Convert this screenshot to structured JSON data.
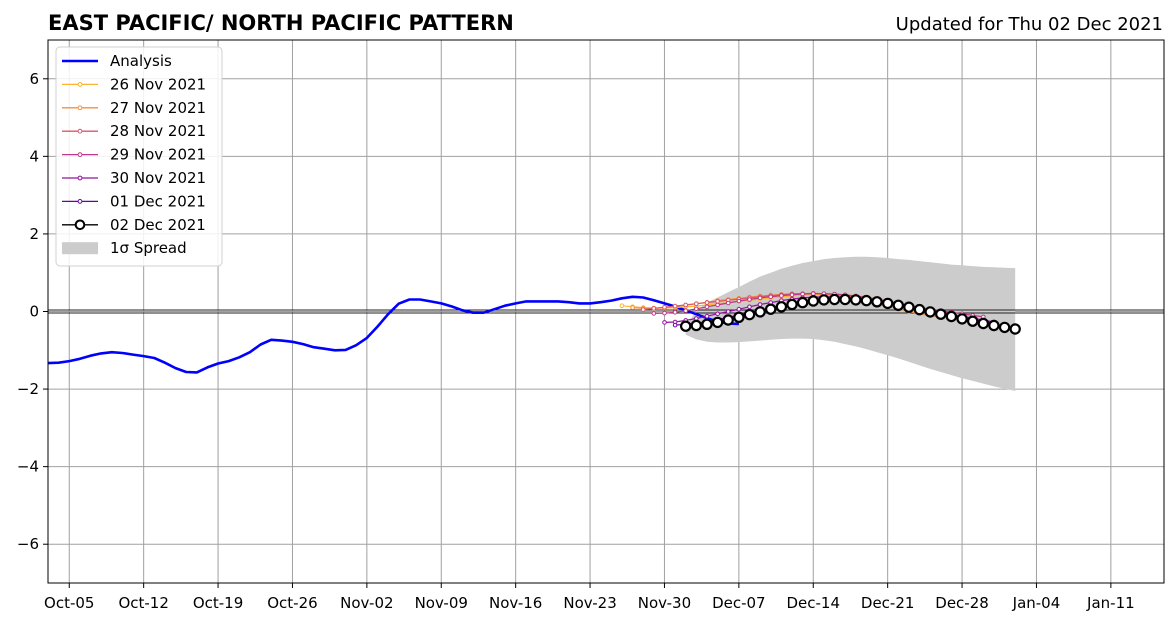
{
  "chart_data": {
    "type": "line",
    "title": "EAST PACIFIC/ NORTH PACIFIC PATTERN",
    "subtitle": "Updated for Thu 02 Dec 2021",
    "xlabel": "",
    "ylabel": "",
    "x_range": [
      "2021-10-03",
      "2022-01-16"
    ],
    "ylim": [
      -7,
      7
    ],
    "x_ticks": [
      {
        "date": "2021-10-05",
        "label": "Oct-05"
      },
      {
        "date": "2021-10-12",
        "label": "Oct-12"
      },
      {
        "date": "2021-10-19",
        "label": "Oct-19"
      },
      {
        "date": "2021-10-26",
        "label": "Oct-26"
      },
      {
        "date": "2021-11-02",
        "label": "Nov-02"
      },
      {
        "date": "2021-11-09",
        "label": "Nov-09"
      },
      {
        "date": "2021-11-16",
        "label": "Nov-16"
      },
      {
        "date": "2021-11-23",
        "label": "Nov-23"
      },
      {
        "date": "2021-11-30",
        "label": "Nov-30"
      },
      {
        "date": "2021-12-07",
        "label": "Dec-07"
      },
      {
        "date": "2021-12-14",
        "label": "Dec-14"
      },
      {
        "date": "2021-12-21",
        "label": "Dec-21"
      },
      {
        "date": "2021-12-28",
        "label": "Dec-28"
      },
      {
        "date": "2022-01-04",
        "label": "Jan-04"
      },
      {
        "date": "2022-01-11",
        "label": "Jan-11"
      }
    ],
    "y_ticks": [
      {
        "value": -6,
        "label": "−6"
      },
      {
        "value": -4,
        "label": "−4"
      },
      {
        "value": -2,
        "label": "−2"
      },
      {
        "value": 0,
        "label": "0"
      },
      {
        "value": 2,
        "label": "2"
      },
      {
        "value": 4,
        "label": "4"
      },
      {
        "value": 6,
        "label": "6"
      }
    ],
    "grid": true,
    "legend_position": "top-left",
    "zero_line": 0,
    "analysis": {
      "name": "Analysis",
      "color": "#0000ff",
      "start_date": "2021-10-03",
      "values": [
        -1.33,
        -1.32,
        -1.28,
        -1.22,
        -1.14,
        -1.08,
        -1.05,
        -1.07,
        -1.11,
        -1.15,
        -1.2,
        -1.32,
        -1.46,
        -1.56,
        -1.57,
        -1.44,
        -1.34,
        -1.28,
        -1.18,
        -1.05,
        -0.85,
        -0.73,
        -0.75,
        -0.78,
        -0.84,
        -0.92,
        -0.96,
        -1.0,
        -0.99,
        -0.87,
        -0.68,
        -0.39,
        -0.07,
        0.2,
        0.31,
        0.31,
        0.26,
        0.21,
        0.13,
        0.03,
        -0.03,
        -0.03,
        0.06,
        0.15,
        0.21,
        0.26,
        0.26,
        0.26,
        0.26,
        0.24,
        0.21,
        0.21,
        0.24,
        0.28,
        0.34,
        0.38,
        0.36,
        0.29,
        0.21,
        0.13,
        0.03,
        -0.07,
        -0.17,
        -0.26,
        -0.31,
        -0.32
      ]
    },
    "forecasts": [
      {
        "name": "26 Nov 2021",
        "color": "#fdb42f",
        "start_date": "2021-11-26",
        "values": [
          0.15,
          0.12,
          0.1,
          0.09,
          0.09,
          0.1,
          0.12,
          0.14,
          0.17,
          0.2,
          0.23,
          0.26,
          0.29,
          0.32,
          0.35,
          0.38,
          0.4,
          0.42,
          0.43,
          0.44,
          0.44,
          0.43,
          0.41,
          0.38,
          0.34,
          0.29,
          0.23,
          0.16,
          0.09,
          0.02,
          -0.05,
          -0.12
        ]
      },
      {
        "name": "27 Nov 2021",
        "color": "#f58f3e",
        "start_date": "2021-11-27",
        "values": [
          0.1,
          0.08,
          0.08,
          0.1,
          0.13,
          0.16,
          0.2,
          0.24,
          0.28,
          0.31,
          0.34,
          0.37,
          0.4,
          0.42,
          0.44,
          0.46,
          0.46,
          0.46,
          0.44,
          0.41,
          0.37,
          0.32,
          0.26,
          0.2,
          0.13,
          0.06,
          0.0,
          -0.06,
          -0.11,
          -0.15
        ]
      },
      {
        "name": "28 Nov 2021",
        "color": "#d8576b",
        "start_date": "2021-11-28",
        "values": [
          0.05,
          0.08,
          0.11,
          0.14,
          0.17,
          0.2,
          0.23,
          0.26,
          0.29,
          0.32,
          0.35,
          0.38,
          0.41,
          0.43,
          0.45,
          0.46,
          0.47,
          0.46,
          0.44,
          0.41,
          0.37,
          0.33,
          0.28,
          0.23,
          0.18,
          0.13,
          0.08,
          0.04,
          0.0,
          -0.03
        ]
      },
      {
        "name": "29 Nov 2021",
        "color": "#bd3786",
        "start_date": "2021-11-29",
        "values": [
          -0.05,
          -0.04,
          -0.02,
          0.02,
          0.07,
          0.12,
          0.17,
          0.22,
          0.27,
          0.31,
          0.35,
          0.38,
          0.41,
          0.43,
          0.45,
          0.46,
          0.46,
          0.45,
          0.43,
          0.4,
          0.36,
          0.31,
          0.26,
          0.21,
          0.16,
          0.11,
          0.06,
          0.02,
          -0.02,
          -0.06,
          -0.1,
          -0.14
        ]
      },
      {
        "name": "30 Nov 2021",
        "color": "#9511a1",
        "start_date": "2021-11-30",
        "values": [
          -0.28,
          -0.27,
          -0.23,
          -0.18,
          -0.12,
          -0.06,
          0.0,
          0.06,
          0.12,
          0.18,
          0.23,
          0.28,
          0.32,
          0.35,
          0.37,
          0.38,
          0.38,
          0.37,
          0.35,
          0.32,
          0.28,
          0.23,
          0.18,
          0.13,
          0.08,
          0.03,
          -0.02,
          -0.07,
          -0.12,
          -0.17,
          -0.22,
          -0.27
        ]
      },
      {
        "name": "01 Dec 2021",
        "color": "#6a00a8",
        "start_date": "2021-12-01",
        "values": [
          -0.35,
          -0.33,
          -0.3,
          -0.26,
          -0.21,
          -0.15,
          -0.09,
          -0.03,
          0.03,
          0.09,
          0.15,
          0.2,
          0.24,
          0.27,
          0.29,
          0.3,
          0.3,
          0.29,
          0.27,
          0.24,
          0.2,
          0.15,
          0.1,
          0.05,
          0.0,
          -0.05,
          -0.1,
          -0.15,
          -0.2,
          -0.25,
          -0.3
        ]
      },
      {
        "name": "02 Dec 2021",
        "color": "#000000",
        "start_date": "2021-12-02",
        "values": [
          -0.38,
          -0.36,
          -0.33,
          -0.28,
          -0.22,
          -0.15,
          -0.08,
          -0.01,
          0.06,
          0.12,
          0.18,
          0.23,
          0.27,
          0.3,
          0.31,
          0.31,
          0.3,
          0.28,
          0.25,
          0.21,
          0.16,
          0.11,
          0.05,
          -0.01,
          -0.07,
          -0.13,
          -0.19,
          -0.25,
          -0.31,
          -0.36,
          -0.41,
          -0.45
        ]
      }
    ],
    "spread": {
      "name": "1σ Spread",
      "color": "#cccccc",
      "start_date": "2021-12-02",
      "upper": [
        -0.4,
        0.02,
        0.23,
        0.36,
        0.5,
        0.63,
        0.77,
        0.9,
        1.0,
        1.1,
        1.18,
        1.25,
        1.3,
        1.35,
        1.38,
        1.4,
        1.41,
        1.41,
        1.4,
        1.38,
        1.35,
        1.33,
        1.3,
        1.27,
        1.24,
        1.21,
        1.19,
        1.17,
        1.15,
        1.14,
        1.13,
        1.12
      ],
      "lower": [
        -0.6,
        -0.72,
        -0.78,
        -0.8,
        -0.8,
        -0.79,
        -0.77,
        -0.75,
        -0.73,
        -0.71,
        -0.7,
        -0.7,
        -0.71,
        -0.74,
        -0.78,
        -0.84,
        -0.9,
        -0.97,
        -1.05,
        -1.13,
        -1.21,
        -1.3,
        -1.39,
        -1.48,
        -1.56,
        -1.64,
        -1.72,
        -1.79,
        -1.86,
        -1.93,
        -1.99,
        -2.05
      ]
    }
  }
}
